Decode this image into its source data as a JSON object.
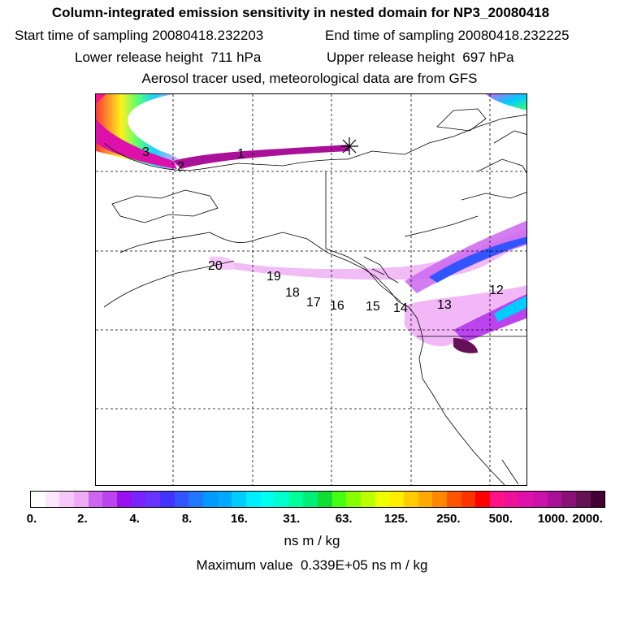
{
  "header": {
    "title": "Column-integrated emission sensitivity in nested domain for NP3_20080418",
    "start_label": "Start time of sampling",
    "start_value": "20080418.232203",
    "end_label": "End time of sampling",
    "end_value": "20080418.232225",
    "lower_label": "Lower release height",
    "lower_value": "711 hPa",
    "upper_label": "Upper release height",
    "upper_value": "697 hPa",
    "tracer_line": "Aerosol tracer used, meteorological data are from GFS"
  },
  "map": {
    "release_marker": "asterisk-marker",
    "time_labels": [
      "1",
      "2",
      "3",
      "12",
      "13",
      "14",
      "15",
      "16",
      "17",
      "18",
      "19",
      "20"
    ]
  },
  "colorbar": {
    "ticks": [
      "0.",
      "2.",
      "4.",
      "8.",
      "16.",
      "31.",
      "63.",
      "125.",
      "250.",
      "500.",
      "1000.",
      "2000."
    ],
    "colors": [
      "#ffffff",
      "#ffe6ff",
      "#f7c8f7",
      "#eeaaf4",
      "#cc66ee",
      "#bb44ee",
      "#9911ee",
      "#7a22ff",
      "#6633ff",
      "#4433ff",
      "#3355ff",
      "#2277ff",
      "#0099ff",
      "#00aaff",
      "#00ccff",
      "#00eeff",
      "#00ffee",
      "#00ffcc",
      "#00ff99",
      "#00ee77",
      "#11dd33",
      "#44ff11",
      "#88ff00",
      "#bbff00",
      "#eeff00",
      "#ffee00",
      "#ffcc00",
      "#ffaa00",
      "#ff8800",
      "#ff5500",
      "#ff3300",
      "#ff0000",
      "#ff1188",
      "#ee1199",
      "#dd11aa",
      "#cc11aa",
      "#aa1199",
      "#881177",
      "#661155",
      "#440033"
    ],
    "units": "ns m / kg"
  },
  "footer": {
    "max_label": "Maximum value",
    "max_value": "0.339E+05",
    "max_units": "ns m / kg"
  }
}
